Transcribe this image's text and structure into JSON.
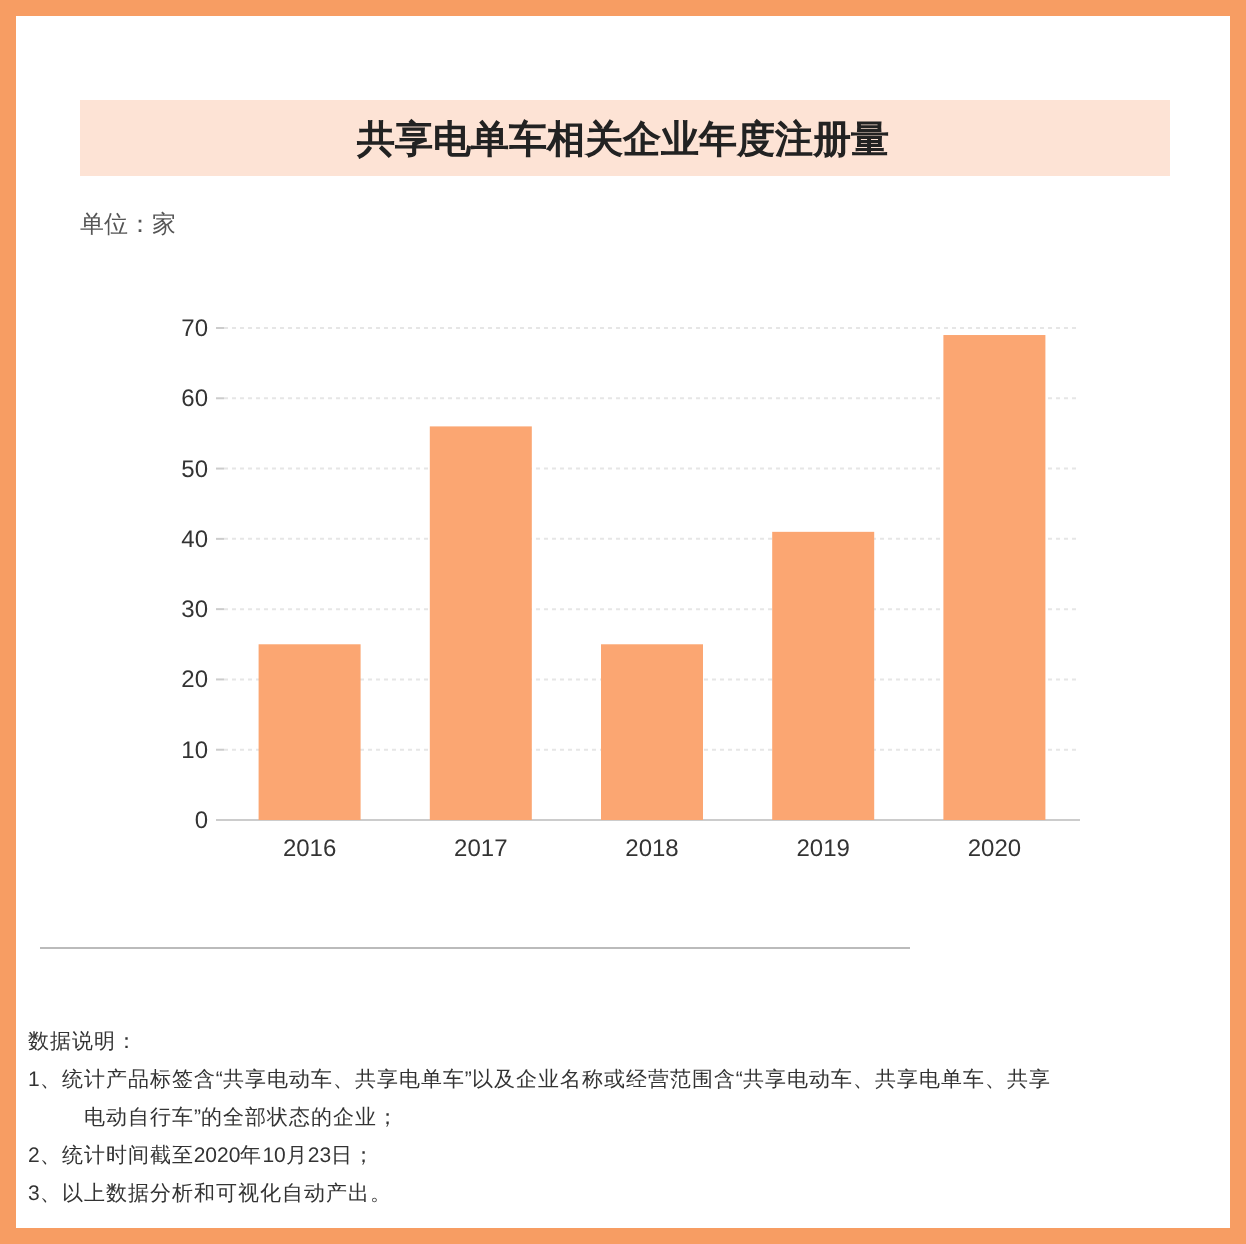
{
  "chart_data": {
    "type": "bar",
    "title": "共享电单车相关企业年度注册量",
    "ylabel": "单位：家",
    "categories": [
      "2016",
      "2017",
      "2018",
      "2019",
      "2020"
    ],
    "values": [
      25,
      56,
      25,
      41,
      69
    ],
    "color": "#fba672",
    "ylim": [
      0,
      70
    ],
    "yticks": [
      0,
      10,
      20,
      30,
      40,
      50,
      60,
      70
    ],
    "grid": "y",
    "annotations": [
      "数据说明：",
      "1、统计产品标签含“共享电动车、共享电单车”以及企业名称或经营范围含“共享电动车、共享电单车、共享电动自行车”的全部状态的企业；",
      "2、统计时间截至2020年10月23日；",
      "3、以上数据分析和可视化自动产出。"
    ]
  }
}
